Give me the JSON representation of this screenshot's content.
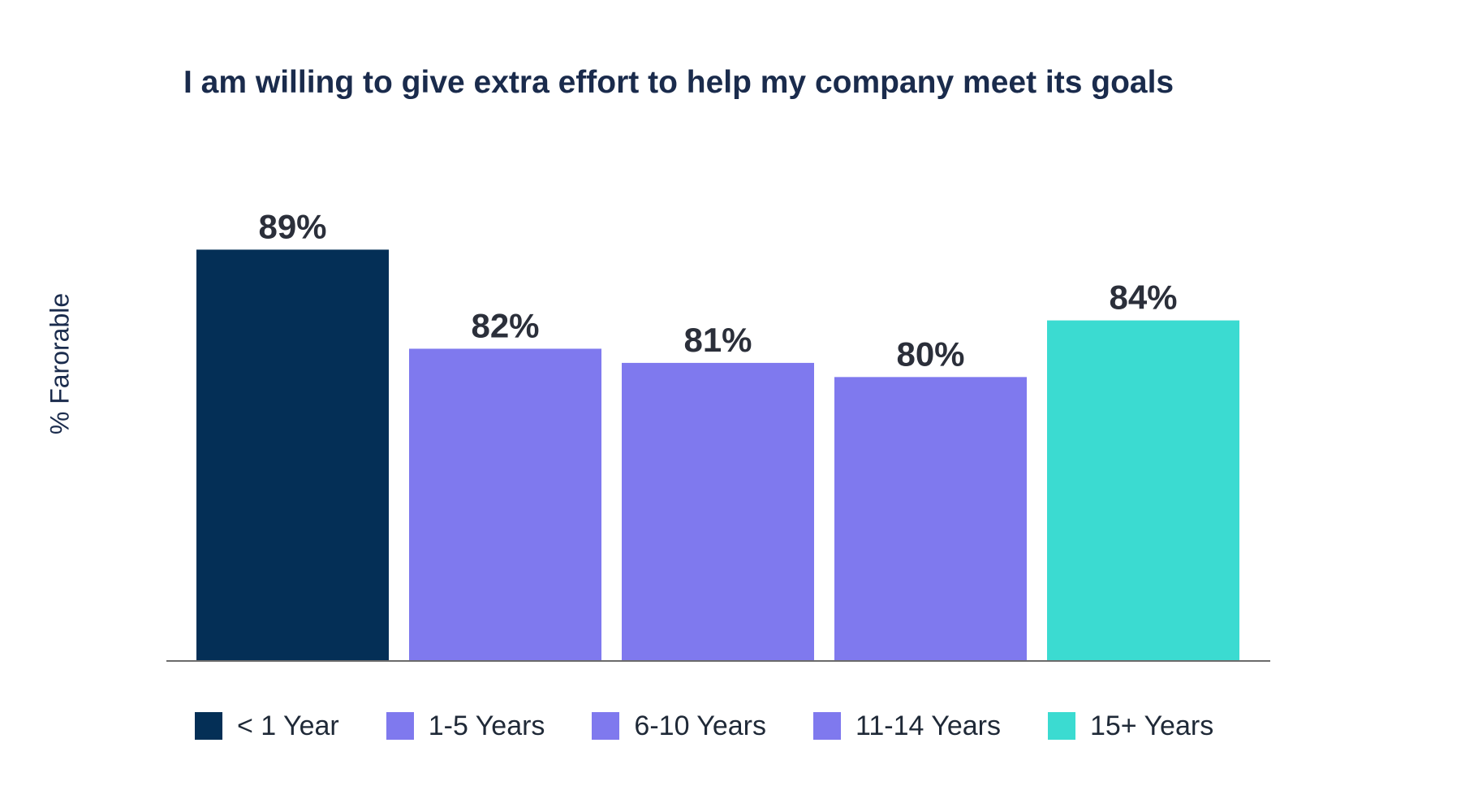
{
  "chart_data": {
    "type": "bar",
    "title": "I am willing to give extra effort to help my company meet its goals",
    "xlabel": "",
    "ylabel": "% Farorable",
    "categories": [
      "< 1 Year",
      "1-5 Years",
      "6-10 Years",
      "11-14 Years",
      "15+ Years"
    ],
    "values": [
      89,
      82,
      81,
      80,
      84
    ],
    "data_labels": [
      "89%",
      "82%",
      "81%",
      "80%",
      "84%"
    ],
    "colors": [
      "#042f56",
      "#7f79ee",
      "#7f79ee",
      "#7f79ee",
      "#3bdbd1"
    ],
    "ylim": [
      60,
      90
    ],
    "grid": false,
    "legend": {
      "position": "bottom",
      "items": [
        {
          "label": "< 1 Year",
          "color": "#042f56"
        },
        {
          "label": "1-5 Years",
          "color": "#7f79ee"
        },
        {
          "label": "6-10 Years",
          "color": "#7f79ee"
        },
        {
          "label": "11-14 Years",
          "color": "#7f79ee"
        },
        {
          "label": "15+ Years",
          "color": "#3bdbd1"
        }
      ]
    }
  }
}
